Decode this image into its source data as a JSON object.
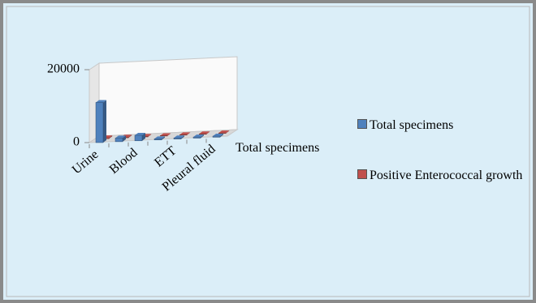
{
  "chart_data": {
    "type": "bar3d",
    "categories": [
      "Urine",
      null,
      "Blood",
      null,
      "ETT",
      null,
      "Pleural fluid"
    ],
    "series": [
      {
        "name": "Total specimens",
        "color": "#4f81bd",
        "values": [
          11000,
          1000,
          1500,
          300,
          300,
          300,
          300
        ]
      },
      {
        "name": "Positive Enterococcal growth",
        "color": "#c0504d",
        "values": [
          250,
          200,
          150,
          100,
          100,
          100,
          100
        ]
      }
    ],
    "ylim": [
      0,
      20000
    ],
    "yticks": [
      0,
      20000
    ],
    "legend": "right"
  }
}
